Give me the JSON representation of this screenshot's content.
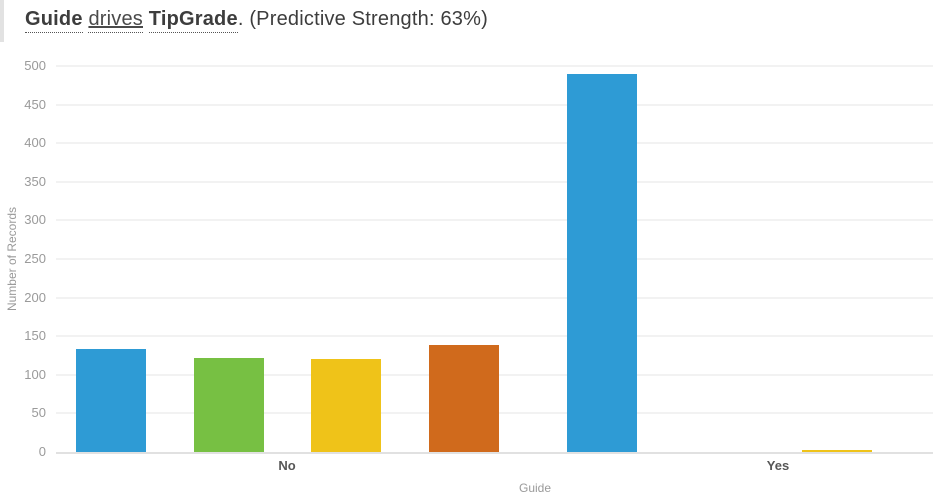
{
  "title": {
    "subject": "Guide",
    "verb": "drives",
    "target": "TipGrade",
    "suffix": ". (Predictive Strength: 63%)"
  },
  "chart_data": {
    "type": "bar",
    "title": "Guide drives TipGrade. (Predictive Strength: 63%)",
    "xlabel": "Guide",
    "ylabel": "Number of Records",
    "ylim": [
      0,
      500
    ],
    "ytick_step": 50,
    "yticks": [
      0,
      50,
      100,
      150,
      200,
      250,
      300,
      350,
      400,
      450,
      500
    ],
    "grid": true,
    "legend_position": "none",
    "categories": [
      "No",
      "Yes"
    ],
    "series": [
      {
        "name": "series-1-blue",
        "color": "#2E9BD5",
        "values": [
          133,
          490
        ]
      },
      {
        "name": "series-2-green",
        "color": "#77C043",
        "values": [
          122,
          0
        ]
      },
      {
        "name": "series-3-yellow",
        "color": "#EFC319",
        "values": [
          120,
          2
        ]
      },
      {
        "name": "series-4-orange",
        "color": "#D06A1C",
        "values": [
          139,
          0
        ]
      }
    ]
  },
  "colors": {
    "gridline": "#f2f2f2",
    "axis_line": "#e1e1e1",
    "tick_text": "#9a9a9a",
    "category_text": "#575757",
    "title_text": "#3d3d3d"
  }
}
